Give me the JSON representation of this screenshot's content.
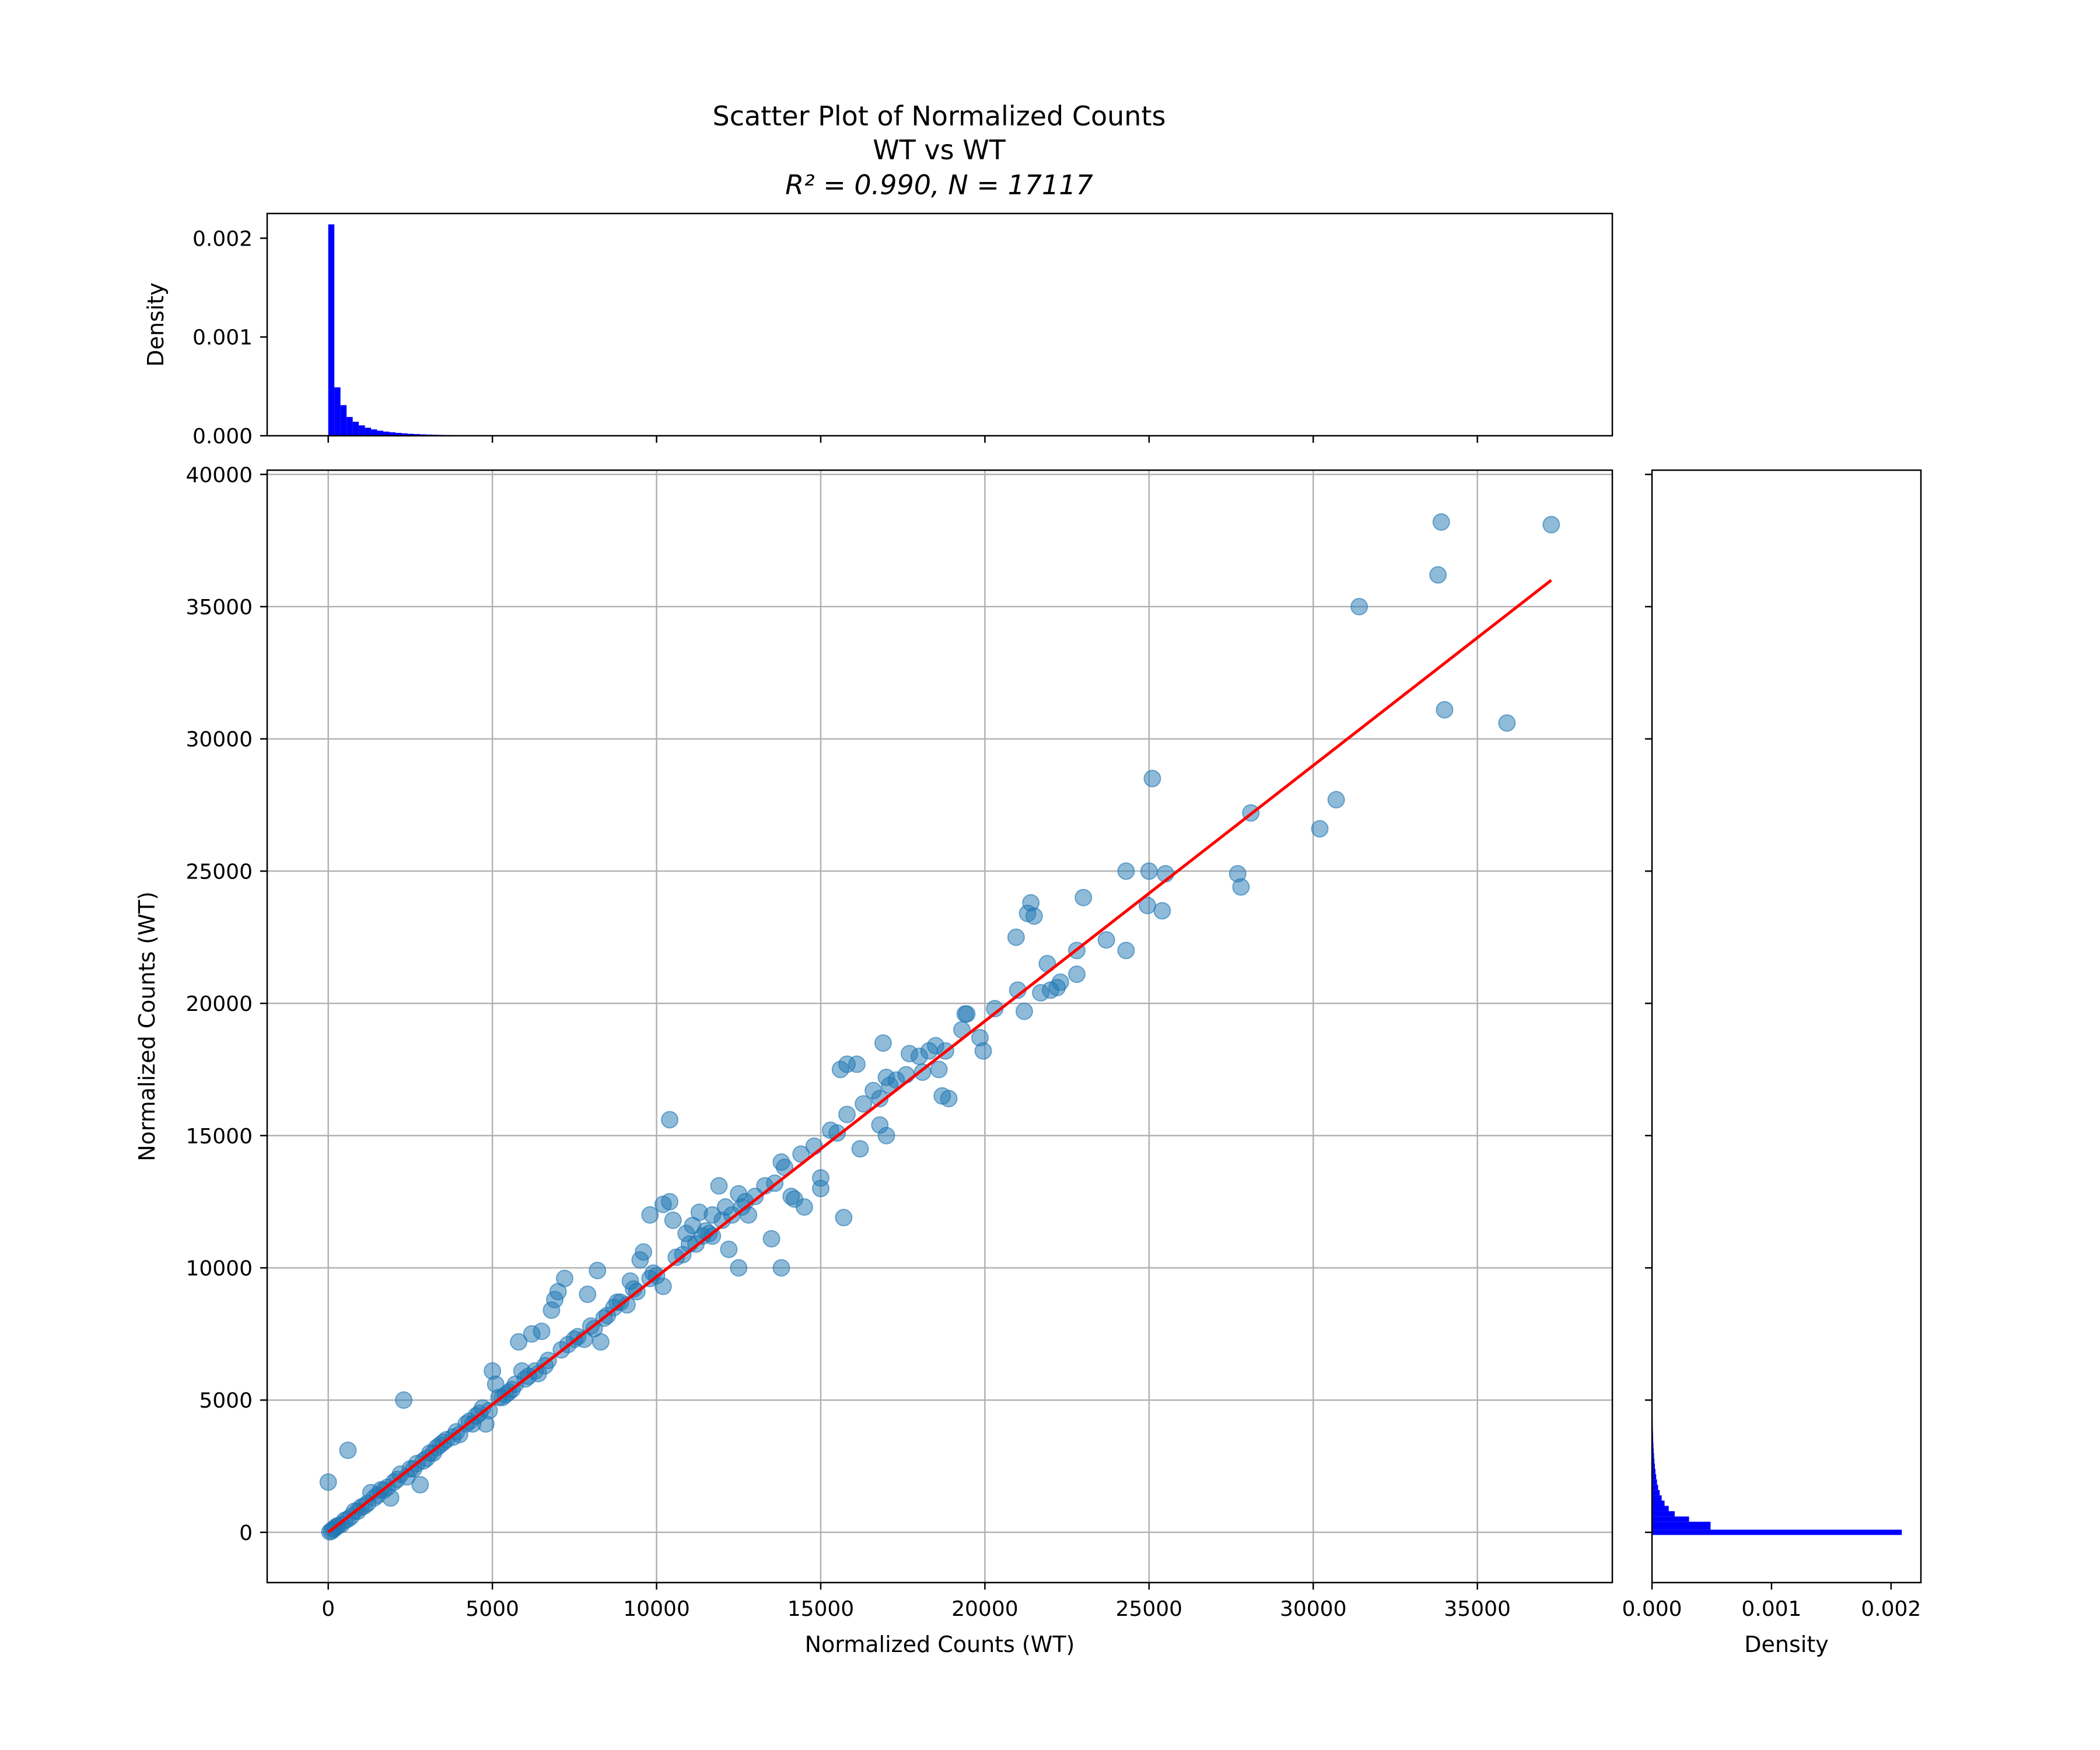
{
  "chart_data": {
    "type": "scatter",
    "title_lines": [
      "Scatter Plot of Normalized Counts",
      "WT vs WT",
      "R² = 0.990, N = 17117"
    ],
    "stats": {
      "r_squared": 0.99,
      "n": 17117
    },
    "main": {
      "xlabel": "Normalized Counts (WT)",
      "ylabel": "Normalized Counts (WT)",
      "xlim": [
        -1860,
        39110
      ],
      "ylim": [
        -1900,
        40160
      ],
      "xticks": [
        0,
        5000,
        10000,
        15000,
        20000,
        25000,
        30000,
        35000
      ],
      "xtick_labels": [
        "0",
        "5000",
        "10000",
        "15000",
        "20000",
        "25000",
        "30000",
        "35000"
      ],
      "yticks": [
        0,
        5000,
        10000,
        15000,
        20000,
        25000,
        30000,
        35000,
        40000
      ],
      "ytick_labels": [
        "0",
        "5000",
        "10000",
        "15000",
        "20000",
        "25000",
        "30000",
        "35000",
        "40000"
      ],
      "grid": true,
      "point_color": "#1f77b4",
      "point_alpha": 0.5,
      "fit_line": {
        "color": "#ff0000",
        "x": [
          0,
          37250
        ],
        "y": [
          0,
          36000
        ]
      },
      "points": {
        "x": [
          37250,
          33900,
          33800,
          31400,
          34000,
          35900,
          30200,
          30700,
          28100,
          25100,
          25000,
          24300,
          25500,
          27700,
          27800,
          24950,
          25400,
          24300,
          23700,
          23000,
          22800,
          22800,
          21900,
          21400,
          21300,
          21500,
          20950,
          21200,
          21700,
          22000,
          22200,
          22300,
          19400,
          19450,
          19850,
          19950,
          18500,
          18600,
          18700,
          18900,
          18300,
          18000,
          17700,
          16900,
          17000,
          16600,
          16800,
          17300,
          17100,
          15600,
          16100,
          15800,
          17000,
          16800,
          16200,
          15500,
          15300,
          15800,
          15000,
          15000,
          14500,
          14200,
          13800,
          13900,
          15700,
          13800,
          12800,
          12700,
          12500,
          12100,
          11700,
          11900,
          11300,
          11100,
          10400,
          10200,
          10400,
          10500,
          10900,
          11500,
          9800,
          9500,
          9600,
          8800,
          9200,
          8200,
          7900,
          8100,
          8300,
          7200,
          6800,
          6900,
          7000,
          6500,
          5800,
          6200,
          5000,
          4800,
          5100,
          5900,
          4400,
          3900,
          2600,
          2300,
          2400,
          2800,
          1900,
          600,
          0,
          800,
          1300,
          12500,
          12200,
          13500,
          14100,
          11700,
          9800,
          10200,
          9100,
          8500,
          7600,
          7800,
          6000,
          6400,
          5500,
          5200,
          4700,
          4200,
          3600,
          3400,
          3000,
          2700,
          2200,
          1800,
          1500,
          1100,
          900,
          600,
          400,
          200,
          100,
          50,
          300,
          700,
          1000,
          1400,
          1700,
          2000,
          2500,
          3200,
          3800,
          4500,
          5300,
          5600,
          6300,
          6700,
          7300,
          7500,
          8000,
          8700,
          9300,
          9900,
          10600,
          11000,
          11400,
          12000,
          12300,
          13000,
          13300,
          14400,
          14800,
          16300,
          17600,
          18100,
          18800,
          19300,
          20300,
          21000,
          4000,
          3100,
          2900,
          5700,
          6100,
          6600,
          7100,
          8400,
          8900,
          9400,
          10000,
          10800,
          11200,
          11600,
          12600,
          13600,
          4900,
          5400,
          3300,
          2100,
          1600,
          1200,
          500,
          250,
          150,
          3500,
          4300,
          4600
        ],
        "y": [
          38100,
          38200,
          36200,
          35000,
          31100,
          30600,
          26600,
          27700,
          27200,
          28500,
          25000,
          25000,
          24900,
          24900,
          24400,
          23700,
          23500,
          22000,
          22400,
          24000,
          22000,
          21100,
          21500,
          23800,
          23400,
          23300,
          22500,
          19700,
          20400,
          20500,
          20600,
          20800,
          19600,
          19600,
          18700,
          18200,
          18400,
          17500,
          16500,
          16400,
          18200,
          18000,
          18100,
          18500,
          17200,
          16700,
          16400,
          17100,
          16900,
          17500,
          17700,
          17700,
          15000,
          15400,
          14500,
          15100,
          15200,
          15800,
          13000,
          13400,
          12300,
          12600,
          14000,
          13800,
          11900,
          10000,
          12000,
          12500,
          12800,
          12300,
          12000,
          13100,
          12100,
          11600,
          15600,
          12400,
          12500,
          11800,
          11300,
          11400,
          12000,
          10300,
          10600,
          8700,
          9500,
          9900,
          9000,
          7700,
          7200,
          9600,
          8400,
          8800,
          9100,
          7600,
          7200,
          7500,
          6100,
          4100,
          5600,
          6100,
          4100,
          3800,
          2400,
          5000,
          2100,
          1800,
          1300,
          3100,
          1900,
          800,
          1500,
          10000,
          10700,
          11100,
          12700,
          11200,
          9600,
          9300,
          8600,
          8200,
          7400,
          7300,
          5800,
          6000,
          5300,
          5100,
          4700,
          4100,
          3500,
          3300,
          2800,
          2600,
          2200,
          1700,
          1400,
          1000,
          800,
          500,
          300,
          150,
          50,
          20,
          250,
          600,
          950,
          1300,
          1600,
          1900,
          2400,
          3000,
          3600,
          4400,
          5100,
          5400,
          6100,
          6500,
          7100,
          7300,
          7800,
          8500,
          9200,
          9800,
          10400,
          10900,
          11200,
          11800,
          12000,
          12700,
          13100,
          14300,
          14600,
          16200,
          17300,
          17400,
          18200,
          19000,
          19800,
          20500,
          3700,
          3000,
          2700,
          5600,
          5900,
          6300,
          6900,
          8100,
          8700,
          9100,
          9700,
          10500,
          10900,
          11300,
          12300,
          13200,
          4600,
          5200,
          3200,
          2000,
          1600,
          1100,
          450,
          220,
          120,
          3400,
          4200,
          4500
        ]
      }
    },
    "top_hist": {
      "ylabel": "Density",
      "ylim": [
        0,
        0.00225
      ],
      "yticks": [
        0.0,
        0.001,
        0.002
      ],
      "ytick_labels": [
        "0.000",
        "0.001",
        "0.002"
      ],
      "color": "#0000ff",
      "bin_width": 186.25,
      "densities": [
        0.00214,
        0.00049,
        0.00031,
        0.00019,
        0.000142,
        0.000105,
        8.1e-05,
        6.4e-05,
        5.1e-05,
        4.2e-05,
        3.5e-05,
        2.9e-05,
        2.4e-05,
        2e-05,
        1.7e-05,
        1.4e-05,
        1.2e-05,
        1e-05,
        8.5e-06,
        7.2e-06,
        6.1e-06,
        5.2e-06,
        4.4e-06,
        3.7e-06,
        3.1e-06,
        2.6e-06,
        2.2e-06,
        1.9e-06,
        1.6e-06,
        1.4e-06,
        1.2e-06,
        1e-06,
        9e-07,
        8e-07,
        7e-07,
        6e-07,
        5e-07,
        4e-07,
        3e-07,
        2e-07
      ]
    },
    "right_hist": {
      "xlabel": "Density",
      "xlim": [
        0,
        0.00225
      ],
      "xticks": [
        0.0,
        0.001,
        0.002
      ],
      "xtick_labels": [
        "0.000",
        "0.001",
        "0.002"
      ],
      "color": "#0000ff",
      "bins": [
        {
          "y0": -100,
          "y1": 100,
          "density": 0.00209
        },
        {
          "y0": 100,
          "y1": 400,
          "density": 0.00049
        },
        {
          "y0": 400,
          "y1": 600,
          "density": 0.00031
        },
        {
          "y0": 600,
          "y1": 800,
          "density": 0.00019
        },
        {
          "y0": 800,
          "y1": 1000,
          "density": 0.00014
        },
        {
          "y0": 1000,
          "y1": 1200,
          "density": 0.000105
        },
        {
          "y0": 1200,
          "y1": 1400,
          "density": 8.1e-05
        },
        {
          "y0": 1400,
          "y1": 1600,
          "density": 6.4e-05
        },
        {
          "y0": 1600,
          "y1": 1800,
          "density": 5.1e-05
        },
        {
          "y0": 1800,
          "y1": 2000,
          "density": 4.2e-05
        },
        {
          "y0": 2000,
          "y1": 2200,
          "density": 3.5e-05
        },
        {
          "y0": 2200,
          "y1": 2400,
          "density": 2.9e-05
        },
        {
          "y0": 2400,
          "y1": 2600,
          "density": 2.4e-05
        },
        {
          "y0": 2600,
          "y1": 2800,
          "density": 2e-05
        },
        {
          "y0": 2800,
          "y1": 3000,
          "density": 1.7e-05
        },
        {
          "y0": 3000,
          "y1": 3200,
          "density": 1.4e-05
        },
        {
          "y0": 3200,
          "y1": 3400,
          "density": 1.2e-05
        },
        {
          "y0": 3400,
          "y1": 3600,
          "density": 1e-05
        },
        {
          "y0": 3600,
          "y1": 3800,
          "density": 8.5e-06
        },
        {
          "y0": 3800,
          "y1": 4000,
          "density": 7.2e-06
        },
        {
          "y0": 4000,
          "y1": 4200,
          "density": 6.1e-06
        },
        {
          "y0": 4200,
          "y1": 4400,
          "density": 5.2e-06
        },
        {
          "y0": 4400,
          "y1": 4600,
          "density": 4.4e-06
        },
        {
          "y0": 4600,
          "y1": 4800,
          "density": 3.7e-06
        },
        {
          "y0": 4800,
          "y1": 5000,
          "density": 3e-06
        }
      ]
    }
  }
}
